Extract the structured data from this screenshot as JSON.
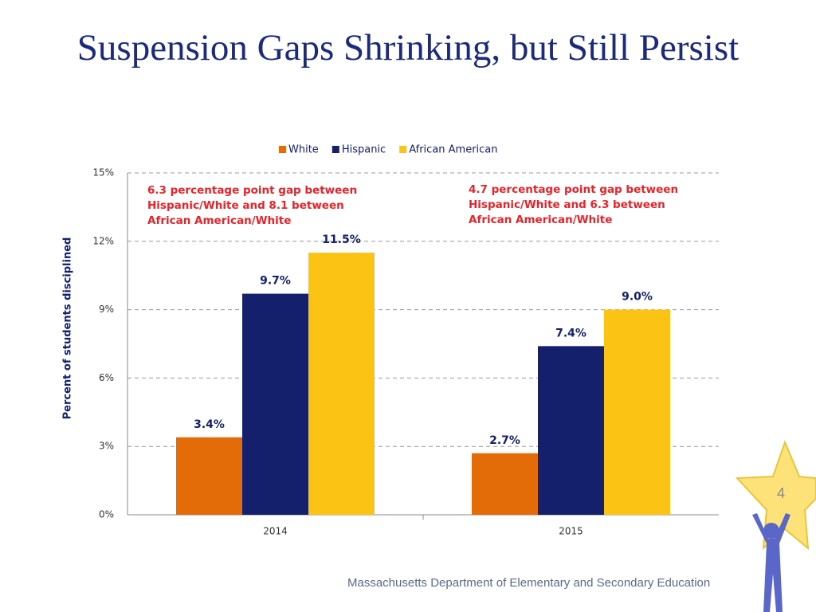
{
  "title": "Suspension Gaps Shrinking, but Still Persist",
  "chart_data": {
    "type": "bar",
    "categories": [
      "2014",
      "2015"
    ],
    "series": [
      {
        "name": "White",
        "color": "#e36c09",
        "values": [
          3.4,
          2.7
        ],
        "value_labels": [
          "3.4%",
          "2.7%"
        ]
      },
      {
        "name": "Hispanic",
        "color": "#14206b",
        "values": [
          9.7,
          7.4
        ],
        "value_labels": [
          "9.7%",
          "7.4%"
        ]
      },
      {
        "name": "African American",
        "color": "#fbc314",
        "values": [
          11.5,
          9.0
        ],
        "value_labels": [
          "11.5%",
          "9.0%"
        ]
      }
    ],
    "ylabel": "Percent of students disciplined",
    "ylim": [
      0,
      15
    ],
    "yticks": [
      {
        "value": 0,
        "label": "0%"
      },
      {
        "value": 3,
        "label": "3%"
      },
      {
        "value": 6,
        "label": "6%"
      },
      {
        "value": 9,
        "label": "9%"
      },
      {
        "value": 12,
        "label": "12%"
      },
      {
        "value": 15,
        "label": "15%"
      }
    ],
    "grid": true,
    "legend": "top",
    "annotations": [
      "6.3 percentage point gap between Hispanic/White and 8.1 between African American/White",
      "4.7 percentage point gap between Hispanic/White and 6.3 between African American/White"
    ]
  },
  "footer": "Massachusetts Department of Elementary and Secondary Education",
  "slide_number": "4"
}
